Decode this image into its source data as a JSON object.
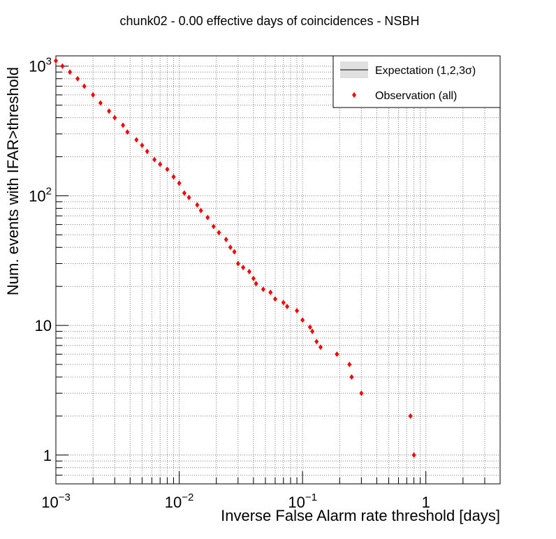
{
  "chart_data": {
    "type": "scatter",
    "title": "chunk02 - 0.00 effective days of coincidences - NSBH",
    "xlabel": "Inverse False Alarm rate threshold [days]",
    "ylabel": "Num. events with IFAR>threshold",
    "x_scale": "log",
    "y_scale": "log",
    "xlim": [
      0.001,
      4.0
    ],
    "ylim": [
      0.6,
      1200
    ],
    "grid": true,
    "legend_position": "top-right",
    "x_ticks": [
      {
        "value": 0.001,
        "base": "10",
        "exp": "−3"
      },
      {
        "value": 0.01,
        "base": "10",
        "exp": "−2"
      },
      {
        "value": 0.1,
        "base": "10",
        "exp": "−1"
      },
      {
        "value": 1,
        "base": "1",
        "exp": ""
      }
    ],
    "y_ticks": [
      {
        "value": 1,
        "base": "1",
        "exp": ""
      },
      {
        "value": 10,
        "base": "10",
        "exp": ""
      },
      {
        "value": 100,
        "base": "10",
        "exp": "2"
      },
      {
        "value": 1000,
        "base": "10",
        "exp": "3"
      }
    ],
    "legend": [
      {
        "label": "Expectation (1,2,3σ)",
        "kind": "band",
        "color": "#e0e0e0"
      },
      {
        "label": "Observation (all)",
        "kind": "marker",
        "color": "#ff0000"
      }
    ],
    "series": [
      {
        "name": "Observation (all)",
        "color": "#ff0000",
        "marker": "diamond",
        "points": [
          [
            0.001,
            1100
          ],
          [
            0.00113,
            1000
          ],
          [
            0.0013,
            900
          ],
          [
            0.0015,
            800
          ],
          [
            0.0017,
            700
          ],
          [
            0.002,
            600
          ],
          [
            0.0023,
            520
          ],
          [
            0.0027,
            450
          ],
          [
            0.003,
            400
          ],
          [
            0.0035,
            350
          ],
          [
            0.0038,
            310
          ],
          [
            0.0045,
            270
          ],
          [
            0.005,
            245
          ],
          [
            0.0055,
            220
          ],
          [
            0.0063,
            190
          ],
          [
            0.007,
            175
          ],
          [
            0.008,
            160
          ],
          [
            0.009,
            140
          ],
          [
            0.01,
            125
          ],
          [
            0.011,
            105
          ],
          [
            0.012,
            97
          ],
          [
            0.014,
            85
          ],
          [
            0.015,
            77
          ],
          [
            0.017,
            68
          ],
          [
            0.019,
            58
          ],
          [
            0.021,
            52
          ],
          [
            0.024,
            46
          ],
          [
            0.026,
            40
          ],
          [
            0.028,
            37
          ],
          [
            0.03,
            30
          ],
          [
            0.033,
            28
          ],
          [
            0.037,
            26
          ],
          [
            0.04,
            23
          ],
          [
            0.042,
            21
          ],
          [
            0.048,
            19
          ],
          [
            0.055,
            18
          ],
          [
            0.06,
            16
          ],
          [
            0.07,
            15
          ],
          [
            0.075,
            14
          ],
          [
            0.09,
            13
          ],
          [
            0.1,
            11
          ],
          [
            0.115,
            9.7
          ],
          [
            0.12,
            9
          ],
          [
            0.13,
            7.5
          ],
          [
            0.14,
            6.8
          ],
          [
            0.19,
            6
          ],
          [
            0.24,
            5
          ],
          [
            0.25,
            4
          ],
          [
            0.3,
            3
          ],
          [
            0.75,
            2
          ],
          [
            0.8,
            1
          ]
        ]
      }
    ]
  }
}
